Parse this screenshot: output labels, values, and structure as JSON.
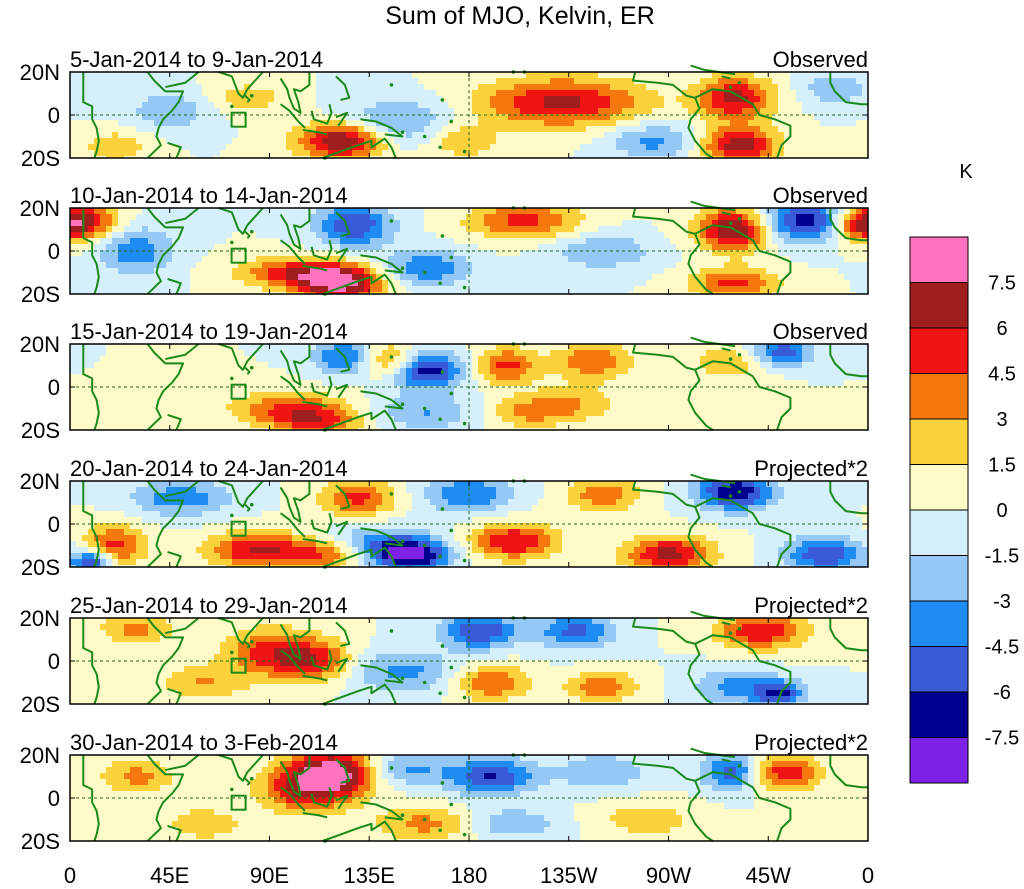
{
  "title": "Sum of MJO, Kelvin, ER",
  "unit": "K",
  "colors": {
    "levels": [
      "#7f22e8",
      "#00008f",
      "#3a5bd8",
      "#1e8cf2",
      "#96c8f6",
      "#d6f0fb",
      "#fffbc8",
      "#fbd23c",
      "#f5780f",
      "#f01414",
      "#a01e1e",
      "#ff73be"
    ],
    "coast": "#1a8a1a",
    "zero_line": "#1a6a1a"
  },
  "colorbar": {
    "labels": [
      "7.5",
      "6",
      "4.5",
      "3",
      "1.5",
      "0",
      "-1.5",
      "-3",
      "-4.5",
      "-6",
      "-7.5"
    ]
  },
  "x_axis": {
    "tick_labels": [
      "0",
      "45E",
      "90E",
      "135E",
      "180",
      "135W",
      "90W",
      "45W",
      "0"
    ]
  },
  "y_axis": {
    "tick_labels": [
      "20N",
      "0",
      "20S"
    ]
  },
  "panels": [
    {
      "period": "5-Jan-2014 to 9-Jan-2014",
      "label": "Observed",
      "anomalies": [
        {
          "lon": 222,
          "lat": 6,
          "a": 6.5,
          "wx": 26,
          "wy": 8
        },
        {
          "lon": 300,
          "lat": 8,
          "a": 6.5,
          "wx": 12,
          "wy": 7
        },
        {
          "lon": 302,
          "lat": -14,
          "a": 7,
          "wx": 12,
          "wy": 6
        },
        {
          "lon": 123,
          "lat": -12,
          "a": 8,
          "wx": 14,
          "wy": 6
        },
        {
          "lon": 148,
          "lat": -4,
          "a": -3.5,
          "wx": 18,
          "wy": 8
        },
        {
          "lon": 263,
          "lat": -12,
          "a": -3.5,
          "wx": 14,
          "wy": 6
        },
        {
          "lon": 45,
          "lat": 2,
          "a": -3,
          "wx": 12,
          "wy": 6
        },
        {
          "lon": 176,
          "lat": -12,
          "a": 3,
          "wx": 12,
          "wy": 6
        },
        {
          "lon": 20,
          "lat": -15,
          "a": 3,
          "wx": 10,
          "wy": 5
        },
        {
          "lon": 80,
          "lat": 8,
          "a": 2.5,
          "wx": 12,
          "wy": 5
        },
        {
          "lon": 345,
          "lat": 12,
          "a": -3,
          "wx": 10,
          "wy": 5
        }
      ]
    },
    {
      "period": "10-Jan-2014 to 14-Jan-2014",
      "label": "Observed",
      "anomalies": [
        {
          "lon": 8,
          "lat": 14,
          "a": 6,
          "wx": 10,
          "wy": 6
        },
        {
          "lon": 122,
          "lat": -15,
          "a": 8,
          "wx": 14,
          "wy": 6
        },
        {
          "lon": 100,
          "lat": -10,
          "a": 5,
          "wx": 18,
          "wy": 5
        },
        {
          "lon": 300,
          "lat": 10,
          "a": 8,
          "wx": 12,
          "wy": 7
        },
        {
          "lon": 330,
          "lat": 14,
          "a": -7,
          "wx": 14,
          "wy": 7
        },
        {
          "lon": 128,
          "lat": 12,
          "a": -6,
          "wx": 12,
          "wy": 7
        },
        {
          "lon": 160,
          "lat": -8,
          "a": -4.5,
          "wx": 14,
          "wy": 6
        },
        {
          "lon": 205,
          "lat": 14,
          "a": 5,
          "wx": 18,
          "wy": 6
        },
        {
          "lon": 300,
          "lat": -15,
          "a": 5,
          "wx": 14,
          "wy": 5
        },
        {
          "lon": 30,
          "lat": 0,
          "a": -4,
          "wx": 12,
          "wy": 8
        },
        {
          "lon": 240,
          "lat": 0,
          "a": -3,
          "wx": 16,
          "wy": 6
        },
        {
          "lon": 355,
          "lat": 12,
          "a": 5,
          "wx": 8,
          "wy": 6
        }
      ]
    },
    {
      "period": "15-Jan-2014 to 19-Jan-2014",
      "label": "Observed",
      "anomalies": [
        {
          "lon": 160,
          "lat": 8,
          "a": -7.5,
          "wx": 12,
          "wy": 6
        },
        {
          "lon": 124,
          "lat": 14,
          "a": -5,
          "wx": 10,
          "wy": 6
        },
        {
          "lon": 144,
          "lat": 12,
          "a": 5,
          "wx": 10,
          "wy": 6
        },
        {
          "lon": 197,
          "lat": 10,
          "a": 5,
          "wx": 10,
          "wy": 6
        },
        {
          "lon": 236,
          "lat": 12,
          "a": 4.5,
          "wx": 12,
          "wy": 6
        },
        {
          "lon": 300,
          "lat": 12,
          "a": 3,
          "wx": 14,
          "wy": 6
        },
        {
          "lon": 97,
          "lat": -10,
          "a": 4,
          "wx": 18,
          "wy": 6
        },
        {
          "lon": 112,
          "lat": -16,
          "a": 4.5,
          "wx": 14,
          "wy": 5
        },
        {
          "lon": 226,
          "lat": -8,
          "a": 3,
          "wx": 14,
          "wy": 6
        },
        {
          "lon": 160,
          "lat": -12,
          "a": -3,
          "wx": 16,
          "wy": 6
        },
        {
          "lon": 320,
          "lat": 16,
          "a": -6,
          "wx": 10,
          "wy": 5
        },
        {
          "lon": 205,
          "lat": -12,
          "a": 3,
          "wx": 12,
          "wy": 5
        }
      ]
    },
    {
      "period": "20-Jan-2014 to 24-Jan-2014",
      "label": "Projected*2",
      "anomalies": [
        {
          "lon": 300,
          "lat": 15,
          "a": -7.5,
          "wx": 12,
          "wy": 6
        },
        {
          "lon": 340,
          "lat": -14,
          "a": -6,
          "wx": 12,
          "wy": 6
        },
        {
          "lon": 154,
          "lat": -15,
          "a": -7,
          "wx": 12,
          "wy": 5
        },
        {
          "lon": 140,
          "lat": -10,
          "a": -4.5,
          "wx": 18,
          "wy": 6
        },
        {
          "lon": 84,
          "lat": -12,
          "a": 6,
          "wx": 16,
          "wy": 6
        },
        {
          "lon": 116,
          "lat": -14,
          "a": 5,
          "wx": 14,
          "wy": 5
        },
        {
          "lon": 200,
          "lat": -8,
          "a": 6,
          "wx": 14,
          "wy": 6
        },
        {
          "lon": 270,
          "lat": -14,
          "a": 6.5,
          "wx": 14,
          "wy": 6
        },
        {
          "lon": 130,
          "lat": 12,
          "a": 5,
          "wx": 12,
          "wy": 6
        },
        {
          "lon": 20,
          "lat": -10,
          "a": 5,
          "wx": 10,
          "wy": 7
        },
        {
          "lon": 180,
          "lat": 14,
          "a": -4.5,
          "wx": 14,
          "wy": 6
        },
        {
          "lon": 240,
          "lat": 14,
          "a": 4,
          "wx": 12,
          "wy": 6
        },
        {
          "lon": 10,
          "lat": -18,
          "a": -7,
          "wx": 6,
          "wy": 4
        },
        {
          "lon": 50,
          "lat": 12,
          "a": -4,
          "wx": 16,
          "wy": 6
        }
      ]
    },
    {
      "period": "25-Jan-2014 to 29-Jan-2014",
      "label": "Projected*2",
      "anomalies": [
        {
          "lon": 90,
          "lat": 4,
          "a": 5,
          "wx": 14,
          "wy": 8
        },
        {
          "lon": 111,
          "lat": 0,
          "a": 5,
          "wx": 12,
          "wy": 7
        },
        {
          "lon": 312,
          "lat": 14,
          "a": 6,
          "wx": 14,
          "wy": 6
        },
        {
          "lon": 185,
          "lat": 14,
          "a": -6,
          "wx": 12,
          "wy": 6
        },
        {
          "lon": 228,
          "lat": 14,
          "a": -5,
          "wx": 12,
          "wy": 6
        },
        {
          "lon": 150,
          "lat": -5,
          "a": -3.5,
          "wx": 18,
          "wy": 7
        },
        {
          "lon": 30,
          "lat": 15,
          "a": 3.5,
          "wx": 12,
          "wy": 5
        },
        {
          "lon": 190,
          "lat": -10,
          "a": 4.5,
          "wx": 12,
          "wy": 6
        },
        {
          "lon": 300,
          "lat": -12,
          "a": -3.5,
          "wx": 14,
          "wy": 6
        },
        {
          "lon": 60,
          "lat": -10,
          "a": 3,
          "wx": 14,
          "wy": 6
        },
        {
          "lon": 240,
          "lat": -12,
          "a": 4,
          "wx": 12,
          "wy": 5
        },
        {
          "lon": 320,
          "lat": -15,
          "a": -6,
          "wx": 8,
          "wy": 4
        }
      ]
    },
    {
      "period": "30-Jan-2014 to 3-Feb-2014",
      "label": "Projected*2",
      "anomalies": [
        {
          "lon": 120,
          "lat": 12,
          "a": 8,
          "wx": 14,
          "wy": 8
        },
        {
          "lon": 104,
          "lat": 4,
          "a": 5,
          "wx": 14,
          "wy": 8
        },
        {
          "lon": 321,
          "lat": 12,
          "a": 6,
          "wx": 12,
          "wy": 6
        },
        {
          "lon": 190,
          "lat": 10,
          "a": -6,
          "wx": 14,
          "wy": 6
        },
        {
          "lon": 300,
          "lat": 12,
          "a": -6,
          "wx": 10,
          "wy": 6
        },
        {
          "lon": 150,
          "lat": 14,
          "a": -3.5,
          "wx": 14,
          "wy": 6
        },
        {
          "lon": 30,
          "lat": 10,
          "a": 3.5,
          "wx": 12,
          "wy": 6
        },
        {
          "lon": 240,
          "lat": 12,
          "a": -3,
          "wx": 14,
          "wy": 6
        },
        {
          "lon": 160,
          "lat": -12,
          "a": 3.5,
          "wx": 16,
          "wy": 6
        },
        {
          "lon": 200,
          "lat": -12,
          "a": -3,
          "wx": 14,
          "wy": 5
        },
        {
          "lon": 60,
          "lat": -12,
          "a": 3,
          "wx": 12,
          "wy": 5
        },
        {
          "lon": 260,
          "lat": -10,
          "a": 2.5,
          "wx": 16,
          "wy": 6
        }
      ]
    }
  ]
}
